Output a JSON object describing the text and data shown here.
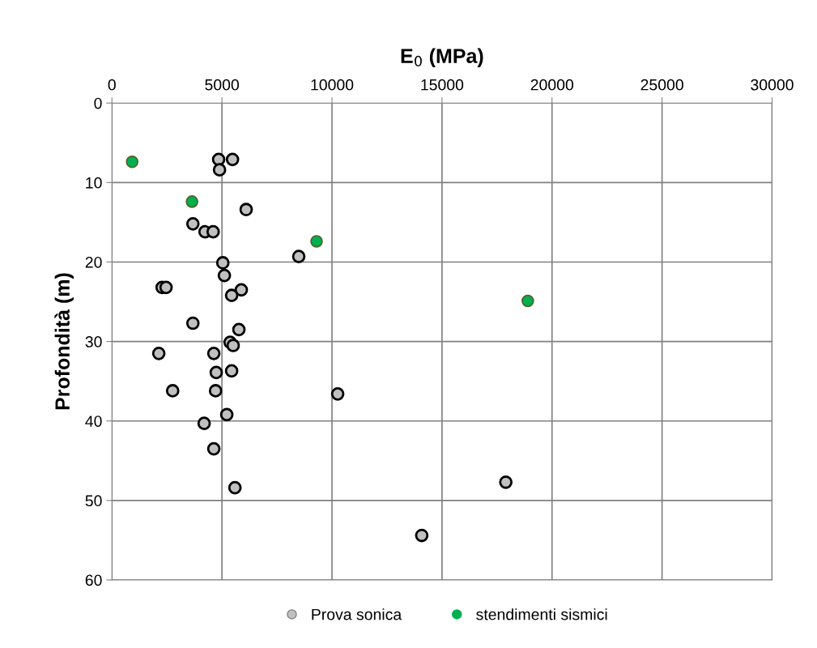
{
  "chart_data": {
    "type": "scatter",
    "xlabel": "E$_{0}$ (MPa)",
    "ylabel": "Profondità (m)",
    "xlim": [
      0,
      30000
    ],
    "xticks": [
      0,
      5000,
      10000,
      15000,
      20000,
      25000,
      30000
    ],
    "ylim": [
      60,
      0
    ],
    "yticks": [
      0,
      10,
      20,
      30,
      40,
      50,
      60
    ],
    "grid": true,
    "legend": "bottom",
    "marker": "circle",
    "series": [
      {
        "name": "Prova sonica",
        "color": "#c0c0c0",
        "x": [
          4850,
          5480,
          4890,
          6100,
          3680,
          4230,
          4600,
          8490,
          5040,
          5110,
          2280,
          2460,
          5880,
          5440,
          3680,
          5770,
          5370,
          5510,
          2130,
          4630,
          4740,
          5440,
          2760,
          4710,
          10260,
          5220,
          4190,
          4630,
          5590,
          17900,
          14080
        ],
        "values": [
          7.1,
          7.1,
          8.4,
          13.4,
          15.2,
          16.2,
          16.2,
          19.3,
          20.1,
          21.7,
          23.2,
          23.2,
          23.5,
          24.2,
          27.7,
          28.5,
          30.1,
          30.5,
          31.5,
          31.5,
          33.9,
          33.7,
          36.2,
          36.2,
          36.6,
          39.2,
          40.3,
          43.5,
          48.4,
          47.7,
          54.4
        ]
      },
      {
        "name": "stendimenti sismici",
        "color": "#00b050",
        "x": [
          920,
          3640,
          9300,
          18900
        ],
        "values": [
          7.4,
          12.4,
          17.4,
          24.9
        ]
      }
    ]
  }
}
